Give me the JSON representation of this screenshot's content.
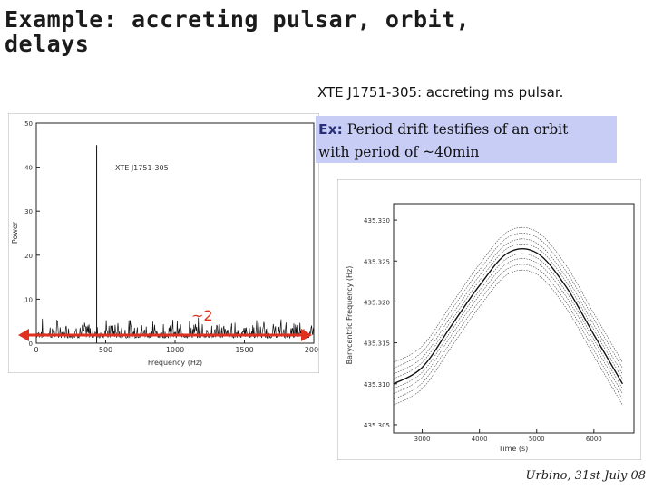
{
  "slide": {
    "title_line1": "Example: accreting pulsar, orbit,",
    "title_line2": "delays",
    "subtitle": "XTE J1751-305: accreting ms pulsar.",
    "ex_label": "Ex:",
    "ex_text_line1": "Period drift testifies of an orbit",
    "ex_text_line2": "with period of ~40min",
    "annotation": "~2",
    "footer": "Urbino, 31st July 08",
    "colors": {
      "ex_box": "#c8cdf6",
      "arrow": "#e0301e"
    }
  },
  "chart_data": [
    {
      "type": "line",
      "title": "XTE J1751-305",
      "xlabel": "Frequency (Hz)",
      "ylabel": "Power",
      "xlim": [
        0,
        2000
      ],
      "ylim": [
        0,
        50
      ],
      "x_ticks": [
        "0",
        "500",
        "1000",
        "1500",
        "2000"
      ],
      "y_ticks": [
        "0",
        "10",
        "20",
        "30",
        "40",
        "50"
      ],
      "noise_level": 3,
      "peak": {
        "x": 435,
        "y": 45
      }
    },
    {
      "type": "line",
      "xlabel": "Time (s)",
      "ylabel": "Barycentric Frequency (Hz)",
      "xlim": [
        2500,
        6700
      ],
      "ylim": [
        435.304,
        435.332
      ],
      "x_ticks": [
        "3000",
        "4000",
        "5000",
        "6000"
      ],
      "y_ticks": [
        "435.305",
        "435.310",
        "435.315",
        "435.320",
        "435.325",
        "435.330"
      ],
      "series": [
        {
          "x": [
            2500,
            3000,
            3500,
            4000,
            4500,
            5000,
            5500,
            6000,
            6500
          ],
          "values": [
            435.31,
            435.312,
            435.317,
            435.322,
            435.326,
            435.326,
            435.322,
            435.316,
            435.31
          ]
        }
      ]
    }
  ]
}
